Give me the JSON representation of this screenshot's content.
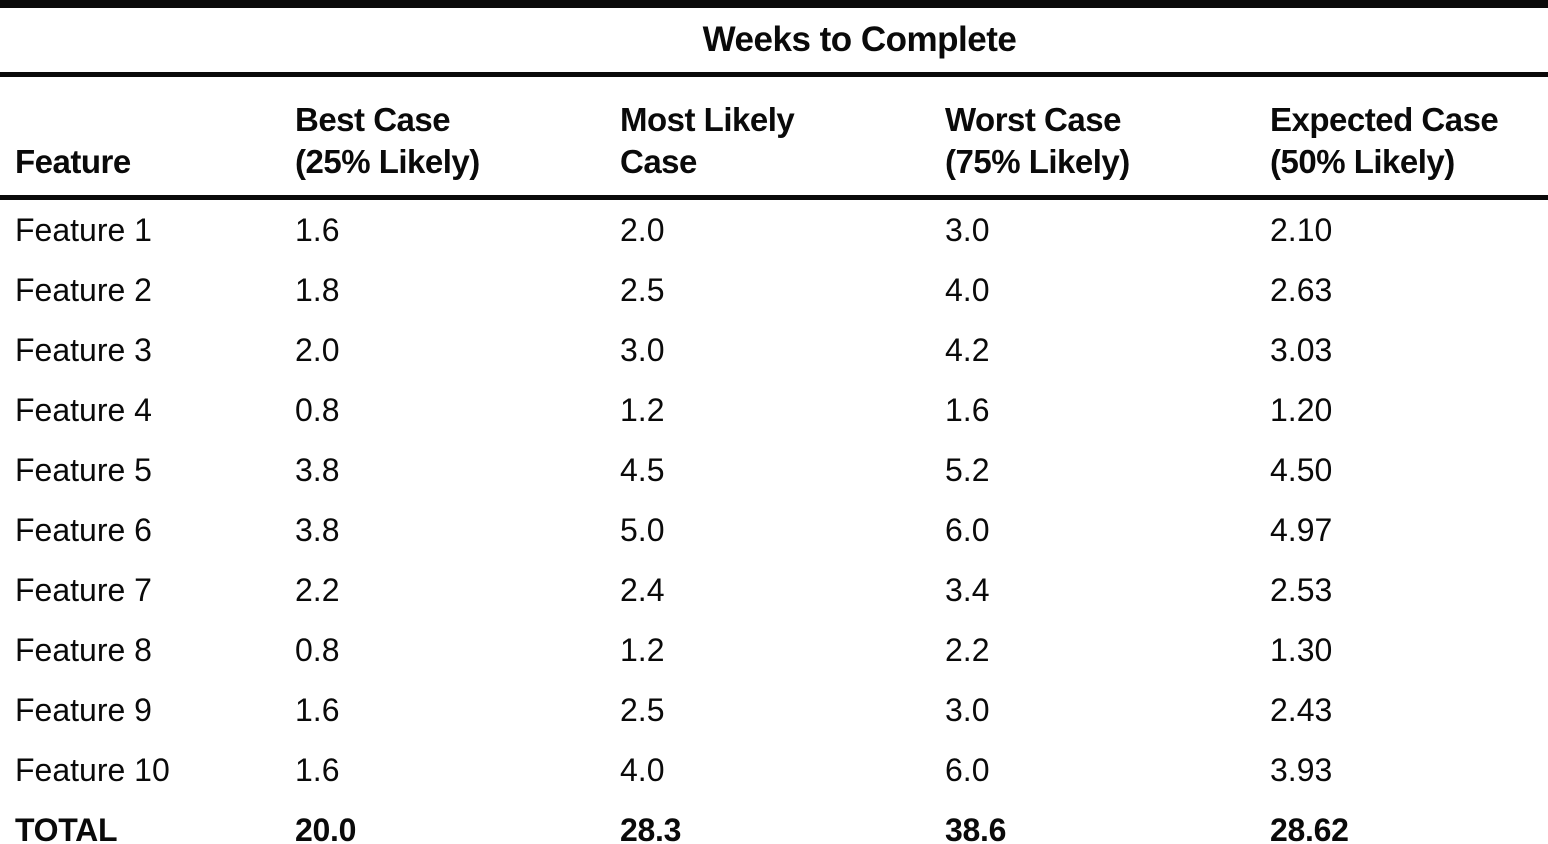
{
  "table": {
    "span_header": "Weeks to Complete",
    "columns": {
      "feature": {
        "label": "Feature",
        "sublabel": ""
      },
      "best": {
        "label": "Best Case",
        "sublabel": "(25% Likely)"
      },
      "most_likely": {
        "label": "Most Likely",
        "sublabel": "Case"
      },
      "worst": {
        "label": "Worst Case",
        "sublabel": "(75% Likely)"
      },
      "expected": {
        "label": "Expected Case",
        "sublabel": "(50% Likely)"
      }
    },
    "rows": [
      {
        "feature": "Feature 1",
        "best": "1.6",
        "most_likely": "2.0",
        "worst": "3.0",
        "expected": "2.10"
      },
      {
        "feature": "Feature 2",
        "best": "1.8",
        "most_likely": "2.5",
        "worst": "4.0",
        "expected": "2.63"
      },
      {
        "feature": "Feature 3",
        "best": "2.0",
        "most_likely": "3.0",
        "worst": "4.2",
        "expected": "3.03"
      },
      {
        "feature": "Feature 4",
        "best": "0.8",
        "most_likely": "1.2",
        "worst": "1.6",
        "expected": "1.20"
      },
      {
        "feature": "Feature 5",
        "best": "3.8",
        "most_likely": "4.5",
        "worst": "5.2",
        "expected": "4.50"
      },
      {
        "feature": "Feature 6",
        "best": "3.8",
        "most_likely": "5.0",
        "worst": "6.0",
        "expected": "4.97"
      },
      {
        "feature": "Feature 7",
        "best": "2.2",
        "most_likely": "2.4",
        "worst": "3.4",
        "expected": "2.53"
      },
      {
        "feature": "Feature 8",
        "best": "0.8",
        "most_likely": "1.2",
        "worst": "2.2",
        "expected": "1.30"
      },
      {
        "feature": "Feature 9",
        "best": "1.6",
        "most_likely": "2.5",
        "worst": "3.0",
        "expected": "2.43"
      },
      {
        "feature": "Feature 10",
        "best": "1.6",
        "most_likely": "4.0",
        "worst": "6.0",
        "expected": "3.93"
      }
    ],
    "total": {
      "feature": "TOTAL",
      "best": "20.0",
      "most_likely": "28.3",
      "worst": "38.6",
      "expected": "28.62"
    }
  }
}
